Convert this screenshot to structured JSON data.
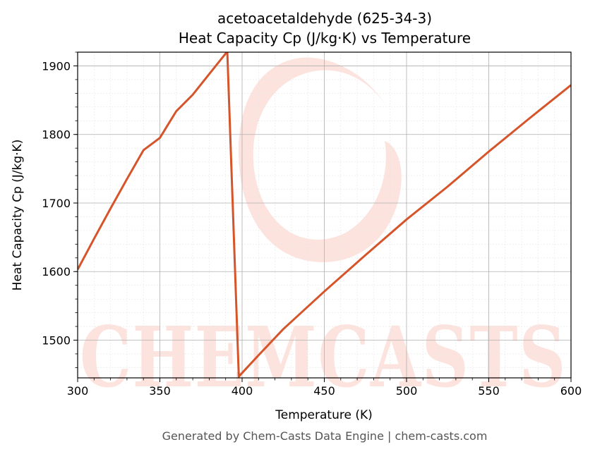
{
  "chart_data": {
    "type": "line",
    "title": "acetoacetaldehyde (625-34-3)",
    "subtitle": "Heat Capacity Cp (J/kg·K) vs Temperature",
    "xlabel": "Temperature (K)",
    "ylabel": "Heat Capacity Cp (J/kg·K)",
    "xlim": [
      300,
      600
    ],
    "ylim": [
      1445,
      1920
    ],
    "x_ticks": [
      300,
      350,
      400,
      450,
      500,
      550,
      600
    ],
    "y_ticks": [
      1500,
      1600,
      1700,
      1800,
      1900
    ],
    "grid": true,
    "series": [
      {
        "color": "#d6542a",
        "x": [
          300,
          310,
          320,
          330,
          340,
          350,
          360,
          370,
          380,
          391,
          398,
          410,
          425,
          450,
          475,
          500,
          525,
          550,
          575,
          600
        ],
        "y": [
          1603,
          1648,
          1692,
          1735,
          1777,
          1795,
          1834,
          1858,
          1888,
          1921,
          1447,
          1478,
          1516,
          1571,
          1624,
          1676,
          1724,
          1775,
          1824,
          1872
        ]
      }
    ]
  },
  "watermark": {
    "text": "CHEMCASTS"
  },
  "footer": "Generated by Chem-Casts Data Engine | chem-casts.com"
}
